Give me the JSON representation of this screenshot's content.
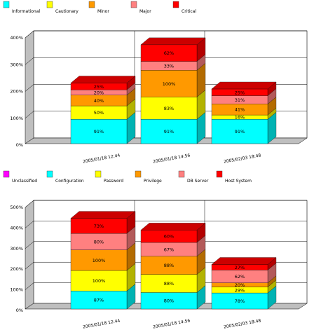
{
  "chart_data": [
    {
      "type": "bar",
      "stacked": true,
      "three_d": true,
      "legend_position": "top",
      "categories": [
        "2005/01/18 12:44",
        "2005/01/18 14:56",
        "2005/02/03 18:48"
      ],
      "yticks": [
        "0%",
        "100%",
        "200%",
        "300%",
        "400%"
      ],
      "ylim": [
        0,
        400
      ],
      "grid": true,
      "series": [
        {
          "name": "Informational",
          "color": "#00ffff",
          "values": [
            91,
            91,
            91
          ],
          "labels": [
            "91%",
            "91%",
            "91%"
          ]
        },
        {
          "name": "Cautionary",
          "color": "#ffff00",
          "values": [
            50,
            83,
            16
          ],
          "labels": [
            "50%",
            "83%",
            "16%"
          ]
        },
        {
          "name": "Minor",
          "color": "#ff9900",
          "values": [
            40,
            100,
            41
          ],
          "labels": [
            "40%",
            "100%",
            "41%"
          ]
        },
        {
          "name": "Major",
          "color": "#ff8080",
          "values": [
            20,
            33,
            31
          ],
          "labels": [
            "20%",
            "33%",
            "31%"
          ]
        },
        {
          "name": "Critical",
          "color": "#ff0000",
          "values": [
            25,
            62,
            25
          ],
          "labels": [
            "25%",
            "62%",
            "25%"
          ]
        }
      ]
    },
    {
      "type": "bar",
      "stacked": true,
      "three_d": true,
      "legend_position": "top",
      "categories": [
        "2005/01/18 12:44",
        "2005/01/18 14:56",
        "2005/02/03 18:48"
      ],
      "yticks": [
        "0%",
        "100%",
        "200%",
        "300%",
        "400%",
        "500%"
      ],
      "ylim": [
        0,
        500
      ],
      "grid": true,
      "series": [
        {
          "name": "Unclassified",
          "color": "#ff00ff",
          "values": [
            0,
            0,
            0
          ],
          "labels": [
            "",
            "",
            ""
          ]
        },
        {
          "name": "Configuration",
          "color": "#00ffff",
          "values": [
            87,
            80,
            78
          ],
          "labels": [
            "87%",
            "80%",
            "78%"
          ]
        },
        {
          "name": "Password",
          "color": "#ffff00",
          "values": [
            100,
            88,
            29
          ],
          "labels": [
            "100%",
            "88%",
            "29%"
          ]
        },
        {
          "name": "Privilege",
          "color": "#ff9900",
          "values": [
            100,
            88,
            20
          ],
          "labels": [
            "100%",
            "88%",
            "20%"
          ]
        },
        {
          "name": "DB Server",
          "color": "#ff8080",
          "values": [
            80,
            67,
            62
          ],
          "labels": [
            "80%",
            "67%",
            "62%"
          ]
        },
        {
          "name": "Host System",
          "color": "#ff0000",
          "values": [
            73,
            60,
            27
          ],
          "labels": [
            "73%",
            "60%",
            "27%"
          ]
        }
      ]
    }
  ]
}
